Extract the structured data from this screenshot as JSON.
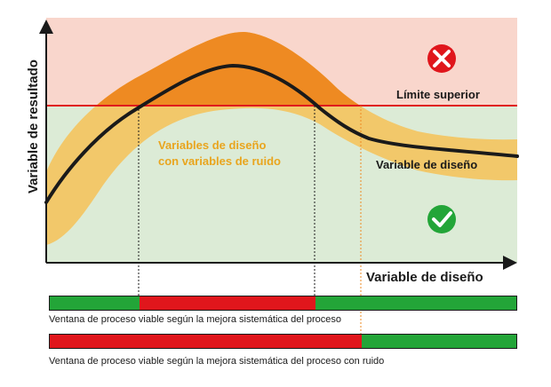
{
  "diagram": {
    "y_axis_label": "Variable de resultado",
    "x_axis_label": "Variable de diseño",
    "upper_limit_label": "Límite superior",
    "curve_label": "Variable de diseño",
    "band_label_line1": "Variables de diseño",
    "band_label_line2": "con variables de ruido",
    "fail_icon": "cross-circle-icon",
    "pass_icon": "check-circle-icon"
  },
  "windows": [
    {
      "caption": "Ventana de proceso viable según la mejora sistemática del proceso"
    },
    {
      "caption": "Ventana de proceso viable según la mejora sistemática del proceso con ruido"
    }
  ],
  "colors": {
    "fail_zone": "#f9d6cc",
    "pass_zone": "#dcebd6",
    "noise_band": "#f2c86a",
    "above_limit": "#ee8a22",
    "curve": "#1a1a1a",
    "limit_line": "#e0161c",
    "band_text": "#e9a51e",
    "ok": "#23a538",
    "bad": "#e0161c"
  }
}
